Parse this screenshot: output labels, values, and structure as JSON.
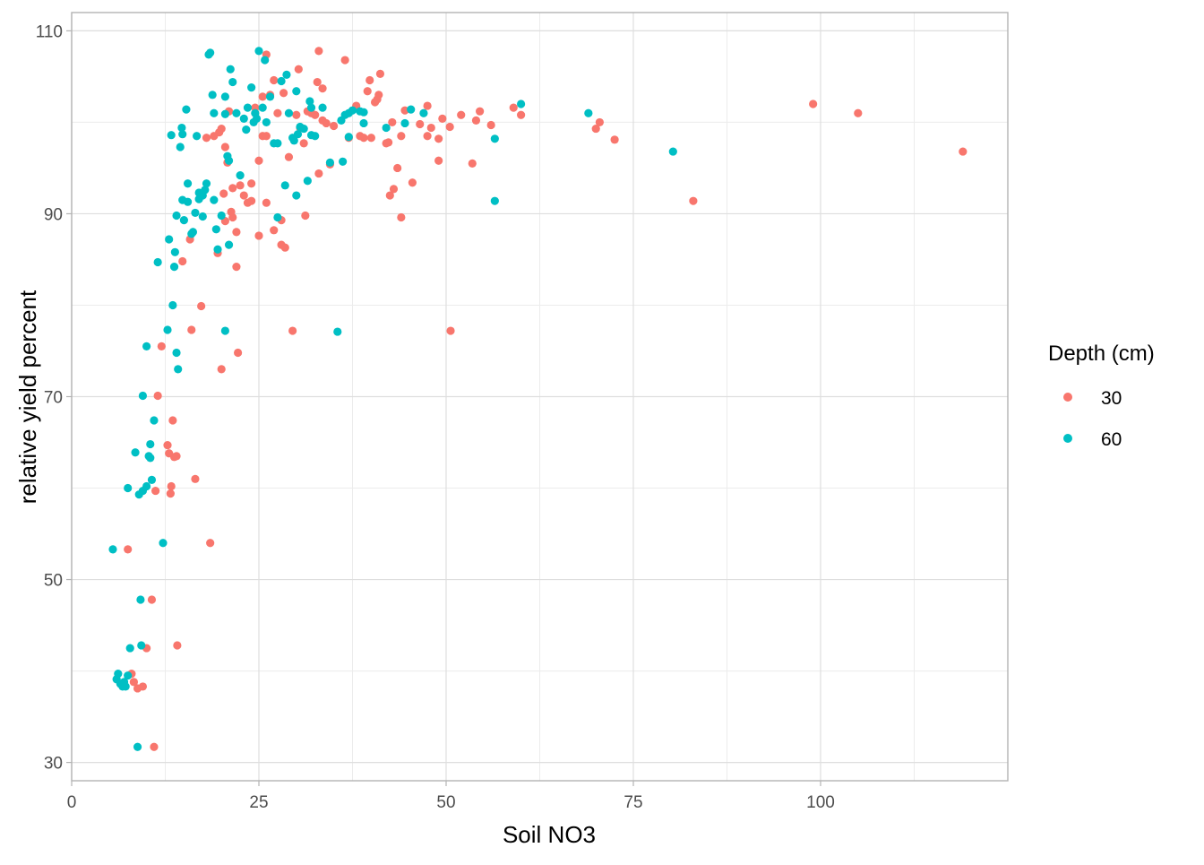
{
  "chart_data": {
    "type": "scatter",
    "title": "",
    "xlabel": "Soil NO3",
    "ylabel": "relative yield percent",
    "xlim": [
      0,
      125
    ],
    "ylim": [
      28,
      112
    ],
    "x_ticks": [
      0,
      25,
      50,
      75,
      100
    ],
    "y_ticks": [
      30,
      50,
      70,
      90,
      110
    ],
    "x_minor_ticks": [
      12.5,
      37.5,
      62.5,
      87.5,
      112.5
    ],
    "y_minor_ticks": [
      40,
      60,
      80,
      100
    ],
    "grid": true,
    "legend": {
      "title": "Depth (cm)",
      "position": "right"
    },
    "series": [
      {
        "name": "30",
        "color": "#F8766D",
        "points": [
          [
            7.5,
            53.3
          ],
          [
            8,
            39.7
          ],
          [
            8.3,
            38.8
          ],
          [
            8.8,
            38.1
          ],
          [
            9.5,
            38.3
          ],
          [
            10,
            42.5
          ],
          [
            10.7,
            47.8
          ],
          [
            11,
            31.7
          ],
          [
            11.2,
            59.7
          ],
          [
            11.5,
            70.1
          ],
          [
            12,
            75.5
          ],
          [
            12.8,
            64.7
          ],
          [
            13,
            63.8
          ],
          [
            13.2,
            59.4
          ],
          [
            13.3,
            60.2
          ],
          [
            13.5,
            67.4
          ],
          [
            13.7,
            63.4
          ],
          [
            14,
            63.5
          ],
          [
            14.1,
            42.8
          ],
          [
            14.8,
            84.8
          ],
          [
            15.8,
            87.2
          ],
          [
            16,
            77.3
          ],
          [
            16.5,
            61
          ],
          [
            17.3,
            79.9
          ],
          [
            18,
            98.3
          ],
          [
            18.5,
            54
          ],
          [
            19,
            98.5
          ],
          [
            19.5,
            85.7
          ],
          [
            19.7,
            98.9
          ],
          [
            20,
            73
          ],
          [
            20,
            99.3
          ],
          [
            20.3,
            92.2
          ],
          [
            20.5,
            89.2
          ],
          [
            20.5,
            97.3
          ],
          [
            20.8,
            95.6
          ],
          [
            21,
            101.2
          ],
          [
            21.3,
            90.2
          ],
          [
            21.5,
            92.8
          ],
          [
            21.5,
            89.6
          ],
          [
            22,
            84.2
          ],
          [
            22,
            88
          ],
          [
            22.2,
            74.8
          ],
          [
            22.5,
            93.1
          ],
          [
            23,
            92
          ],
          [
            23.5,
            91.2
          ],
          [
            24,
            91.4
          ],
          [
            24,
            93.3
          ],
          [
            24.5,
            101.6
          ],
          [
            25,
            87.6
          ],
          [
            25,
            95.8
          ],
          [
            25.5,
            98.5
          ],
          [
            25.5,
            102.8
          ],
          [
            26,
            107.4
          ],
          [
            26,
            98.5
          ],
          [
            26,
            91.2
          ],
          [
            26.5,
            103
          ],
          [
            27,
            104.6
          ],
          [
            27,
            88.2
          ],
          [
            27.5,
            101
          ],
          [
            28,
            89.3
          ],
          [
            28,
            86.6
          ],
          [
            28.3,
            103.2
          ],
          [
            28.5,
            86.3
          ],
          [
            29,
            96.2
          ],
          [
            29.5,
            77.2
          ],
          [
            30,
            100.8
          ],
          [
            30.3,
            105.8
          ],
          [
            30.5,
            99.4
          ],
          [
            31,
            97.7
          ],
          [
            31.2,
            89.8
          ],
          [
            31.5,
            101.2
          ],
          [
            32,
            101
          ],
          [
            32.5,
            100.8
          ],
          [
            32.8,
            104.4
          ],
          [
            33,
            107.8
          ],
          [
            33,
            94.4
          ],
          [
            33.5,
            100.2
          ],
          [
            33.5,
            103.7
          ],
          [
            34,
            99.9
          ],
          [
            34.5,
            95.4
          ],
          [
            35,
            99.6
          ],
          [
            36.5,
            106.8
          ],
          [
            37,
            98.3
          ],
          [
            38,
            101.8
          ],
          [
            38.5,
            98.5
          ],
          [
            39,
            98.3
          ],
          [
            39.5,
            103.4
          ],
          [
            39.8,
            104.6
          ],
          [
            40,
            98.3
          ],
          [
            40.5,
            102.2
          ],
          [
            40.8,
            102.5
          ],
          [
            41,
            103
          ],
          [
            41.2,
            105.3
          ],
          [
            42,
            97.7
          ],
          [
            42.3,
            97.8
          ],
          [
            42.5,
            92
          ],
          [
            42.8,
            100
          ],
          [
            43,
            92.7
          ],
          [
            43.5,
            95
          ],
          [
            44,
            98.5
          ],
          [
            44,
            89.6
          ],
          [
            44.5,
            101.3
          ],
          [
            45.5,
            93.4
          ],
          [
            46.5,
            99.8
          ],
          [
            47.5,
            101.8
          ],
          [
            47.5,
            98.5
          ],
          [
            48,
            99.4
          ],
          [
            49,
            98.2
          ],
          [
            49,
            95.8
          ],
          [
            49.5,
            100.4
          ],
          [
            50.5,
            99.5
          ],
          [
            50.6,
            77.2
          ],
          [
            52,
            100.8
          ],
          [
            53.5,
            95.5
          ],
          [
            54,
            100.2
          ],
          [
            54.5,
            101.2
          ],
          [
            56,
            99.7
          ],
          [
            59,
            101.6
          ],
          [
            60,
            100.8
          ],
          [
            70,
            99.3
          ],
          [
            70.5,
            100
          ],
          [
            72.5,
            98.1
          ],
          [
            83,
            91.4
          ],
          [
            99,
            102
          ],
          [
            105,
            101
          ],
          [
            119,
            96.8
          ]
        ]
      },
      {
        "name": "60",
        "color": "#00BFC4",
        "points": [
          [
            5.5,
            53.3
          ],
          [
            6,
            39.1
          ],
          [
            6.2,
            39.7
          ],
          [
            6.5,
            38.6
          ],
          [
            6.8,
            38.3
          ],
          [
            7,
            38.8
          ],
          [
            7.2,
            38.3
          ],
          [
            7.5,
            39.5
          ],
          [
            7.5,
            60
          ],
          [
            7.8,
            42.5
          ],
          [
            8.5,
            63.9
          ],
          [
            8.8,
            31.7
          ],
          [
            9,
            59.3
          ],
          [
            9.2,
            47.8
          ],
          [
            9.3,
            42.8
          ],
          [
            9.5,
            70.1
          ],
          [
            9.5,
            59.7
          ],
          [
            10,
            75.5
          ],
          [
            10,
            60.2
          ],
          [
            10.3,
            63.5
          ],
          [
            10.5,
            63.3
          ],
          [
            10.5,
            64.8
          ],
          [
            10.7,
            60.9
          ],
          [
            11,
            67.4
          ],
          [
            11.5,
            84.7
          ],
          [
            12.2,
            54
          ],
          [
            12.8,
            77.3
          ],
          [
            13,
            87.2
          ],
          [
            13.3,
            98.6
          ],
          [
            13.5,
            80
          ],
          [
            13.7,
            84.2
          ],
          [
            13.8,
            85.8
          ],
          [
            14,
            74.8
          ],
          [
            14,
            89.8
          ],
          [
            14.2,
            73
          ],
          [
            14.5,
            97.3
          ],
          [
            14.7,
            99.4
          ],
          [
            14.8,
            98.7
          ],
          [
            14.8,
            91.5
          ],
          [
            15,
            89.3
          ],
          [
            15.3,
            101.4
          ],
          [
            15.5,
            91.3
          ],
          [
            15.5,
            93.3
          ],
          [
            16,
            87.8
          ],
          [
            16.2,
            88
          ],
          [
            16.5,
            90.1
          ],
          [
            16.7,
            98.5
          ],
          [
            17,
            92.3
          ],
          [
            17,
            91.6
          ],
          [
            17.5,
            89.7
          ],
          [
            17.5,
            92
          ],
          [
            17.8,
            92.6
          ],
          [
            18,
            93.3
          ],
          [
            18.3,
            107.4
          ],
          [
            18.5,
            107.6
          ],
          [
            18.8,
            103
          ],
          [
            19,
            101
          ],
          [
            19,
            91.5
          ],
          [
            19.3,
            88.3
          ],
          [
            19.5,
            86.1
          ],
          [
            20,
            89.8
          ],
          [
            20.5,
            102.8
          ],
          [
            20.5,
            100.9
          ],
          [
            20.5,
            77.2
          ],
          [
            20.8,
            96.3
          ],
          [
            21,
            95.8
          ],
          [
            21,
            86.6
          ],
          [
            21.2,
            105.8
          ],
          [
            21.5,
            104.4
          ],
          [
            22,
            101
          ],
          [
            22.5,
            94.2
          ],
          [
            23,
            100.4
          ],
          [
            23.3,
            99.2
          ],
          [
            23.5,
            101.6
          ],
          [
            24,
            103.8
          ],
          [
            24.3,
            100
          ],
          [
            24.5,
            101
          ],
          [
            24.7,
            100.4
          ],
          [
            25,
            107.8
          ],
          [
            25.5,
            101.6
          ],
          [
            25.8,
            106.8
          ],
          [
            26,
            100
          ],
          [
            26.5,
            102.8
          ],
          [
            27,
            97.7
          ],
          [
            27.5,
            89.6
          ],
          [
            27.5,
            97.7
          ],
          [
            28,
            104.5
          ],
          [
            28.5,
            93.1
          ],
          [
            28.7,
            105.2
          ],
          [
            29,
            101
          ],
          [
            29.5,
            98.3
          ],
          [
            29.7,
            98
          ],
          [
            30,
            92
          ],
          [
            30,
            103.4
          ],
          [
            30.2,
            98.7
          ],
          [
            30.5,
            99.5
          ],
          [
            31,
            99.3
          ],
          [
            31.5,
            93.6
          ],
          [
            31.8,
            102.3
          ],
          [
            32,
            101.6
          ],
          [
            32,
            98.6
          ],
          [
            32.5,
            98.5
          ],
          [
            33.5,
            101.6
          ],
          [
            34.5,
            95.6
          ],
          [
            35.5,
            77.1
          ],
          [
            36,
            100.2
          ],
          [
            36.2,
            95.7
          ],
          [
            36.5,
            100.8
          ],
          [
            37,
            101
          ],
          [
            37,
            98.4
          ],
          [
            37.5,
            101.3
          ],
          [
            38.5,
            101.2
          ],
          [
            39,
            99.9
          ],
          [
            39,
            101.1
          ],
          [
            42,
            99.4
          ],
          [
            44.5,
            99.9
          ],
          [
            45.3,
            101.4
          ],
          [
            47,
            101
          ],
          [
            56.5,
            98.2
          ],
          [
            56.5,
            91.4
          ],
          [
            60,
            102
          ],
          [
            69,
            101
          ],
          [
            80.3,
            96.8
          ]
        ]
      }
    ]
  }
}
